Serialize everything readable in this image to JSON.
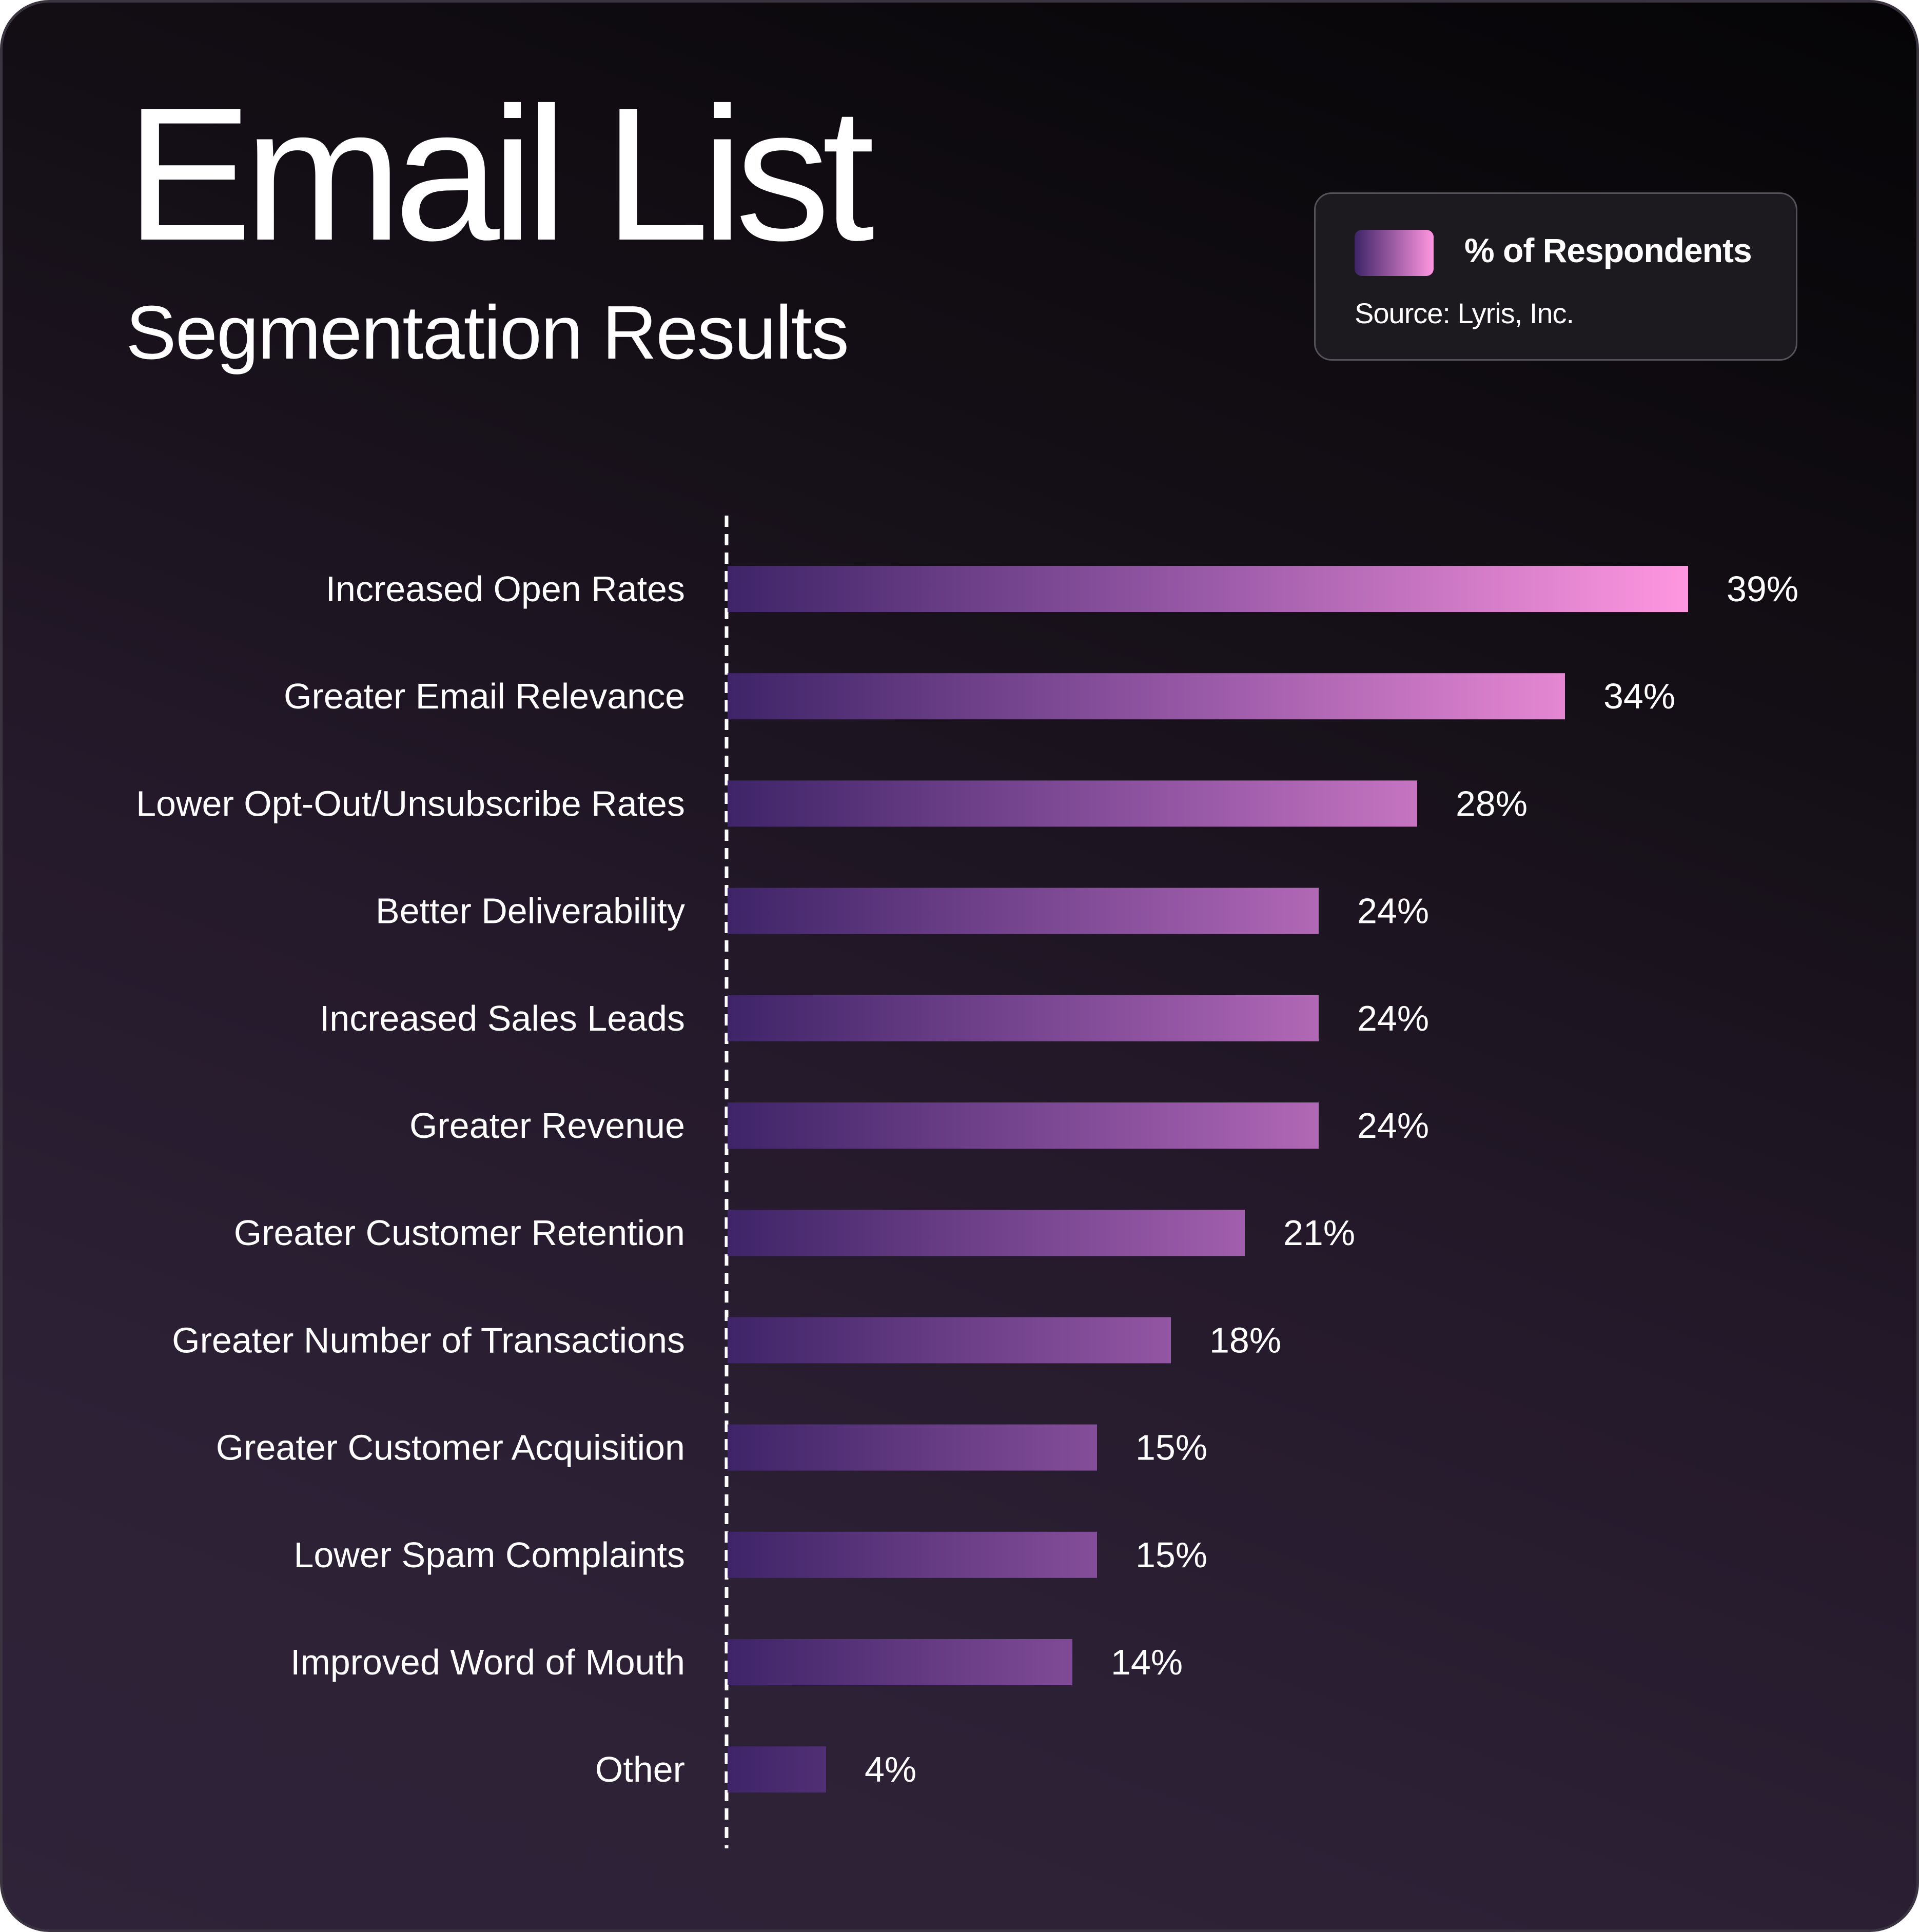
{
  "colors": {
    "bar_start": "#3e2468",
    "bar_end": "#ff96e0",
    "text": "#ffffff"
  },
  "chart_data": {
    "type": "bar",
    "orientation": "horizontal",
    "title": "Email List",
    "subtitle": "Segmentation Results",
    "legend": {
      "label": "% of Respondents",
      "source": "Source: Lyris, Inc.",
      "position": "top-right"
    },
    "categories": [
      "Increased Open Rates",
      "Greater Email Relevance",
      "Lower Opt-Out/Unsubscribe Rates",
      "Better Deliverability",
      "Increased Sales Leads",
      "Greater Revenue",
      "Greater Customer Retention",
      "Greater Number of Transactions",
      "Greater Customer Acquisition",
      "Lower Spam Complaints",
      "Improved Word of Mouth",
      "Other"
    ],
    "values": [
      39,
      34,
      28,
      24,
      24,
      24,
      21,
      18,
      15,
      15,
      14,
      4
    ],
    "value_labels": [
      "39%",
      "34%",
      "28%",
      "24%",
      "24%",
      "24%",
      "21%",
      "18%",
      "15%",
      "15%",
      "14%",
      "4%"
    ],
    "unit": "%",
    "xlim": [
      0,
      39
    ],
    "grid": false
  }
}
